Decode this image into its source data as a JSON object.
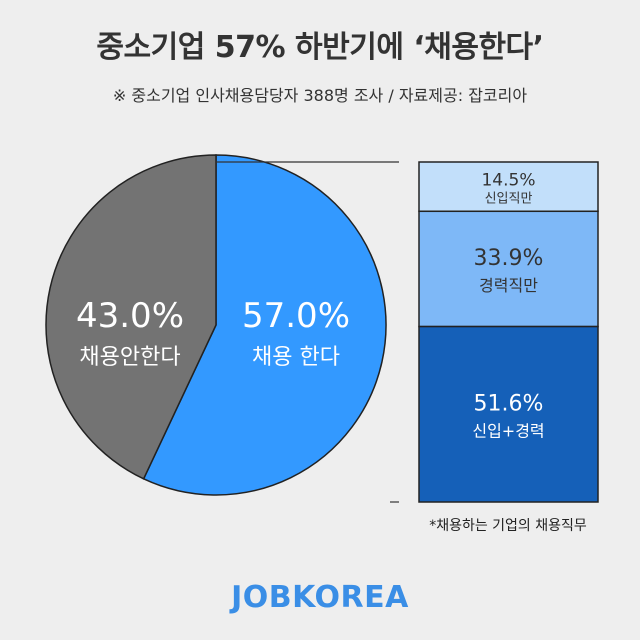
{
  "header": {
    "title": "중소기업 57% 하반기에 ‘채용한다’",
    "subtitle": "※ 중소기업 인사채용담당자 388명 조사 / 자료제공: 잡코리아"
  },
  "chart_data": [
    {
      "type": "pie",
      "categories": [
        "채용안한다",
        "채용 한다"
      ],
      "values": [
        43.0,
        57.0
      ],
      "value_labels": [
        "43.0%",
        "57.0%"
      ],
      "colors": [
        "#737373",
        "#3399ff"
      ]
    },
    {
      "type": "bar",
      "stacked": true,
      "categories": [
        "신입직만",
        "경력직만",
        "신입+경력"
      ],
      "values": [
        14.5,
        33.9,
        51.6
      ],
      "value_labels": [
        "14.5%",
        "33.9%",
        "51.6%"
      ],
      "colors": [
        "#c2dffa",
        "#7eb8f7",
        "#1560b8"
      ],
      "text_colors": [
        "#333333",
        "#333333",
        "#ffffff"
      ],
      "annotation": "*채용하는 기업의 채용직무"
    }
  ],
  "footer": {
    "brand": "JOBKOREA"
  }
}
